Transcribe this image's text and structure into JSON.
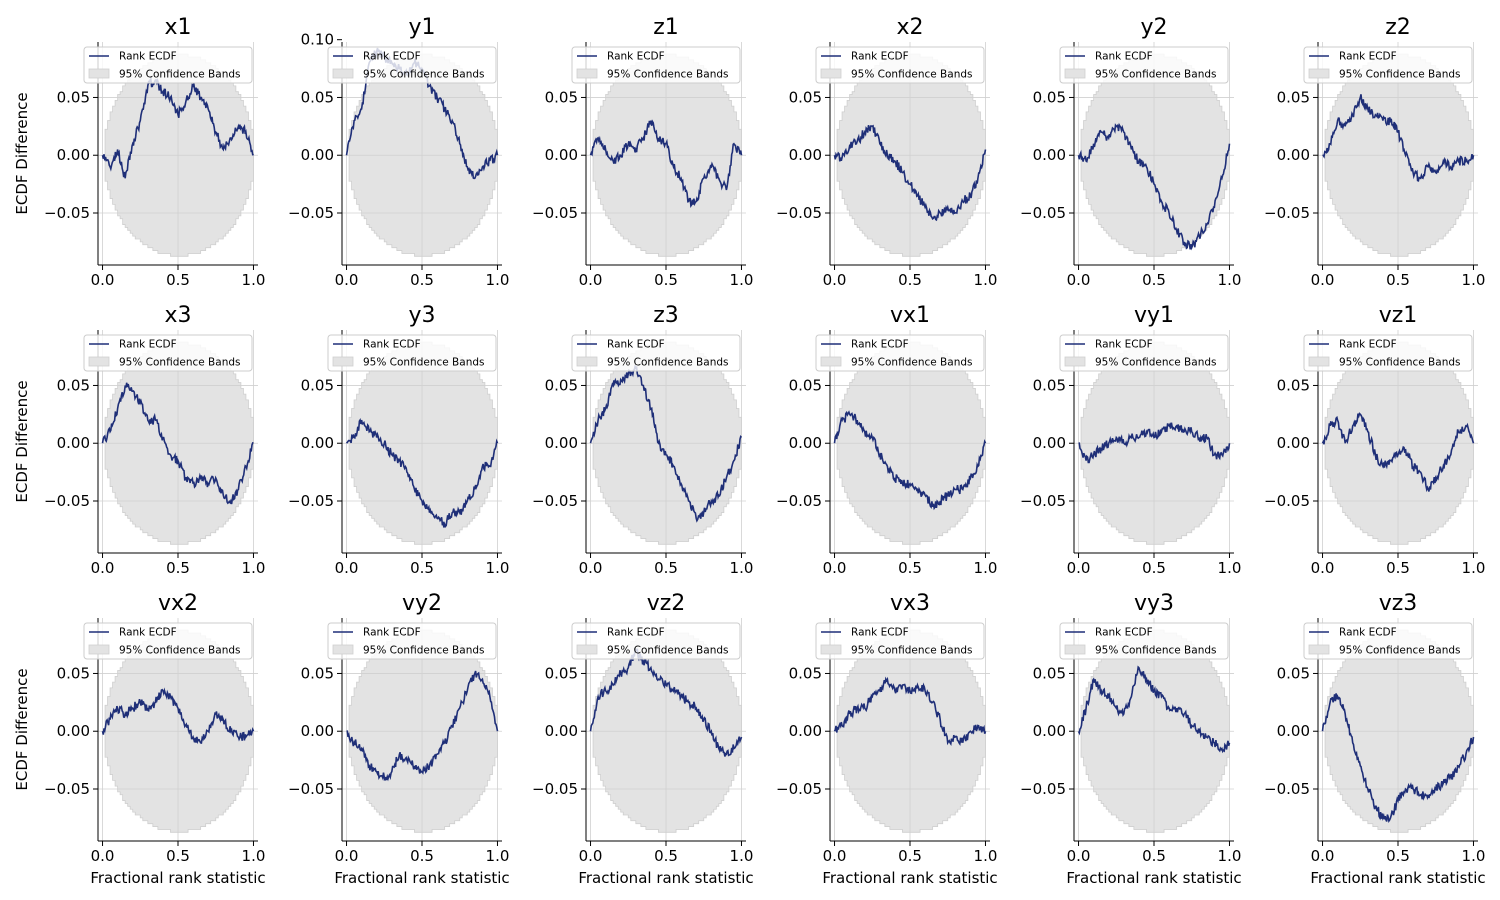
{
  "chart_data": {
    "type": "line",
    "figure": {
      "rows": 3,
      "cols": 6,
      "ylabel": "ECDF Difference",
      "xlabel": "Fractional rank statistic",
      "xlim": [
        -0.03,
        1.03
      ],
      "ylim": [
        -0.095,
        0.098
      ],
      "xticks": [
        0.0,
        0.5,
        1.0
      ],
      "yticks": [
        -0.05,
        0.0,
        0.05
      ],
      "grid": true,
      "legend_placement": "top",
      "legend": {
        "line_label": "Rank ECDF",
        "band_label": "95% Confidence Bands"
      },
      "band_half_width_at_center": 0.087,
      "colors": {
        "line": "#1f2f78",
        "band": "#e3e3e3",
        "band_edge": "#cfcfcf",
        "grid": "#d0d0d0",
        "axis": "#000000"
      }
    },
    "panels": [
      {
        "title": "x1",
        "x": [
          0,
          0.05,
          0.1,
          0.15,
          0.2,
          0.25,
          0.3,
          0.35,
          0.4,
          0.45,
          0.5,
          0.55,
          0.6,
          0.65,
          0.7,
          0.75,
          0.8,
          0.85,
          0.9,
          0.95,
          1.0
        ],
        "y": [
          0.0,
          -0.01,
          0.005,
          -0.02,
          0.01,
          0.03,
          0.06,
          0.065,
          0.055,
          0.05,
          0.035,
          0.045,
          0.06,
          0.05,
          0.04,
          0.02,
          0.005,
          0.015,
          0.025,
          0.02,
          0.0
        ]
      },
      {
        "title": "y1",
        "x": [
          0,
          0.05,
          0.1,
          0.15,
          0.2,
          0.25,
          0.3,
          0.35,
          0.4,
          0.45,
          0.5,
          0.55,
          0.6,
          0.65,
          0.7,
          0.75,
          0.8,
          0.85,
          0.9,
          0.95,
          1.0
        ],
        "y": [
          0.0,
          0.03,
          0.04,
          0.08,
          0.09,
          0.085,
          0.08,
          0.075,
          0.07,
          0.08,
          0.075,
          0.06,
          0.05,
          0.04,
          0.03,
          0.01,
          -0.01,
          -0.02,
          -0.01,
          -0.005,
          0.0
        ]
      },
      {
        "title": "z1",
        "x": [
          0,
          0.05,
          0.1,
          0.15,
          0.2,
          0.25,
          0.3,
          0.35,
          0.4,
          0.45,
          0.5,
          0.55,
          0.6,
          0.65,
          0.7,
          0.75,
          0.8,
          0.85,
          0.9,
          0.95,
          1.0
        ],
        "y": [
          0.0,
          0.015,
          0.005,
          -0.005,
          0.0,
          0.01,
          0.005,
          0.015,
          0.03,
          0.015,
          0.01,
          -0.01,
          -0.02,
          -0.04,
          -0.04,
          -0.02,
          -0.01,
          -0.02,
          -0.03,
          0.01,
          0.0
        ]
      },
      {
        "title": "x2",
        "x": [
          0,
          0.05,
          0.1,
          0.15,
          0.2,
          0.25,
          0.3,
          0.35,
          0.4,
          0.45,
          0.5,
          0.55,
          0.6,
          0.65,
          0.7,
          0.75,
          0.8,
          0.85,
          0.9,
          0.95,
          1.0
        ],
        "y": [
          0.0,
          -0.002,
          0.008,
          0.012,
          0.02,
          0.025,
          0.01,
          0.0,
          -0.005,
          -0.015,
          -0.025,
          -0.035,
          -0.045,
          -0.055,
          -0.05,
          -0.045,
          -0.05,
          -0.04,
          -0.035,
          -0.02,
          0.005
        ]
      },
      {
        "title": "y2",
        "x": [
          0,
          0.05,
          0.1,
          0.15,
          0.2,
          0.25,
          0.3,
          0.35,
          0.4,
          0.45,
          0.5,
          0.55,
          0.6,
          0.65,
          0.7,
          0.75,
          0.8,
          0.85,
          0.9,
          0.95,
          1.0
        ],
        "y": [
          0.0,
          -0.005,
          0.01,
          0.02,
          0.015,
          0.025,
          0.02,
          0.005,
          -0.005,
          -0.01,
          -0.025,
          -0.04,
          -0.05,
          -0.065,
          -0.075,
          -0.08,
          -0.07,
          -0.06,
          -0.045,
          -0.02,
          0.01
        ]
      },
      {
        "title": "z2",
        "x": [
          0,
          0.05,
          0.1,
          0.15,
          0.2,
          0.25,
          0.3,
          0.35,
          0.4,
          0.45,
          0.5,
          0.55,
          0.6,
          0.65,
          0.7,
          0.75,
          0.8,
          0.85,
          0.9,
          0.95,
          1.0
        ],
        "y": [
          0.0,
          0.01,
          0.03,
          0.025,
          0.035,
          0.05,
          0.04,
          0.035,
          0.03,
          0.03,
          0.02,
          0.0,
          -0.015,
          -0.02,
          -0.01,
          -0.015,
          -0.005,
          -0.01,
          -0.005,
          -0.005,
          0.0
        ]
      },
      {
        "title": "x3",
        "x": [
          0,
          0.05,
          0.1,
          0.15,
          0.2,
          0.25,
          0.3,
          0.35,
          0.4,
          0.45,
          0.5,
          0.55,
          0.6,
          0.65,
          0.7,
          0.75,
          0.8,
          0.85,
          0.9,
          0.95,
          1.0
        ],
        "y": [
          0.0,
          0.01,
          0.03,
          0.05,
          0.045,
          0.035,
          0.02,
          0.02,
          0.005,
          -0.01,
          -0.015,
          -0.03,
          -0.035,
          -0.03,
          -0.035,
          -0.03,
          -0.045,
          -0.05,
          -0.04,
          -0.02,
          0.0
        ]
      },
      {
        "title": "y3",
        "x": [
          0,
          0.05,
          0.1,
          0.15,
          0.2,
          0.25,
          0.3,
          0.35,
          0.4,
          0.45,
          0.5,
          0.55,
          0.6,
          0.65,
          0.7,
          0.75,
          0.8,
          0.85,
          0.9,
          0.95,
          1.0
        ],
        "y": [
          0.0,
          0.005,
          0.02,
          0.01,
          0.005,
          0.0,
          -0.01,
          -0.015,
          -0.025,
          -0.04,
          -0.05,
          -0.06,
          -0.065,
          -0.07,
          -0.06,
          -0.06,
          -0.05,
          -0.04,
          -0.02,
          -0.02,
          0.0
        ]
      },
      {
        "title": "z3",
        "x": [
          0,
          0.05,
          0.1,
          0.15,
          0.2,
          0.25,
          0.3,
          0.35,
          0.4,
          0.45,
          0.5,
          0.55,
          0.6,
          0.65,
          0.7,
          0.75,
          0.8,
          0.85,
          0.9,
          0.95,
          1.0
        ],
        "y": [
          0.0,
          0.02,
          0.03,
          0.05,
          0.055,
          0.06,
          0.065,
          0.05,
          0.03,
          0.0,
          -0.01,
          -0.02,
          -0.035,
          -0.05,
          -0.065,
          -0.06,
          -0.05,
          -0.045,
          -0.03,
          -0.015,
          0.005
        ]
      },
      {
        "title": "vx1",
        "x": [
          0,
          0.05,
          0.1,
          0.15,
          0.2,
          0.25,
          0.3,
          0.35,
          0.4,
          0.45,
          0.5,
          0.55,
          0.6,
          0.65,
          0.7,
          0.75,
          0.8,
          0.85,
          0.9,
          0.95,
          1.0
        ],
        "y": [
          0.0,
          0.02,
          0.025,
          0.02,
          0.01,
          0.005,
          -0.01,
          -0.02,
          -0.03,
          -0.035,
          -0.035,
          -0.04,
          -0.045,
          -0.055,
          -0.05,
          -0.045,
          -0.04,
          -0.04,
          -0.03,
          -0.02,
          0.0
        ]
      },
      {
        "title": "vy1",
        "x": [
          0,
          0.05,
          0.1,
          0.15,
          0.2,
          0.25,
          0.3,
          0.35,
          0.4,
          0.45,
          0.5,
          0.55,
          0.6,
          0.65,
          0.7,
          0.75,
          0.8,
          0.85,
          0.9,
          0.95,
          1.0
        ],
        "y": [
          0.0,
          -0.015,
          -0.01,
          -0.005,
          0.0,
          0.005,
          0.0,
          0.005,
          0.005,
          0.01,
          0.005,
          0.01,
          0.015,
          0.015,
          0.01,
          0.01,
          0.005,
          0.005,
          -0.01,
          -0.01,
          0.0
        ]
      },
      {
        "title": "vz1",
        "x": [
          0,
          0.05,
          0.1,
          0.15,
          0.2,
          0.25,
          0.3,
          0.35,
          0.4,
          0.45,
          0.5,
          0.55,
          0.6,
          0.65,
          0.7,
          0.75,
          0.8,
          0.85,
          0.9,
          0.95,
          1.0
        ],
        "y": [
          0.0,
          0.015,
          0.02,
          0.0,
          0.015,
          0.025,
          0.01,
          -0.01,
          -0.02,
          -0.015,
          -0.01,
          -0.005,
          -0.02,
          -0.025,
          -0.04,
          -0.03,
          -0.02,
          -0.01,
          0.01,
          0.015,
          0.0
        ]
      },
      {
        "title": "vx2",
        "x": [
          0,
          0.05,
          0.1,
          0.15,
          0.2,
          0.25,
          0.3,
          0.35,
          0.4,
          0.45,
          0.5,
          0.55,
          0.6,
          0.65,
          0.7,
          0.75,
          0.8,
          0.85,
          0.9,
          0.95,
          1.0
        ],
        "y": [
          0.0,
          0.01,
          0.02,
          0.015,
          0.02,
          0.025,
          0.02,
          0.025,
          0.035,
          0.03,
          0.02,
          0.005,
          -0.005,
          -0.01,
          0.0,
          0.015,
          0.01,
          0.0,
          -0.005,
          -0.005,
          0.0
        ]
      },
      {
        "title": "vy2",
        "x": [
          0,
          0.05,
          0.1,
          0.15,
          0.2,
          0.25,
          0.3,
          0.35,
          0.4,
          0.45,
          0.5,
          0.55,
          0.6,
          0.65,
          0.7,
          0.75,
          0.8,
          0.85,
          0.9,
          0.95,
          1.0
        ],
        "y": [
          0.0,
          -0.01,
          -0.015,
          -0.03,
          -0.035,
          -0.04,
          -0.035,
          -0.02,
          -0.025,
          -0.03,
          -0.035,
          -0.03,
          -0.02,
          -0.01,
          0.005,
          0.02,
          0.035,
          0.05,
          0.045,
          0.03,
          0.0
        ]
      },
      {
        "title": "vz2",
        "x": [
          0,
          0.05,
          0.1,
          0.15,
          0.2,
          0.25,
          0.3,
          0.35,
          0.4,
          0.45,
          0.5,
          0.55,
          0.6,
          0.65,
          0.7,
          0.75,
          0.8,
          0.85,
          0.9,
          0.95,
          1.0
        ],
        "y": [
          0.0,
          0.03,
          0.035,
          0.04,
          0.05,
          0.055,
          0.07,
          0.06,
          0.055,
          0.045,
          0.04,
          0.035,
          0.03,
          0.025,
          0.02,
          0.01,
          0.0,
          -0.015,
          -0.02,
          -0.015,
          -0.005
        ]
      },
      {
        "title": "vx3",
        "x": [
          0,
          0.05,
          0.1,
          0.15,
          0.2,
          0.25,
          0.3,
          0.35,
          0.4,
          0.45,
          0.5,
          0.55,
          0.6,
          0.65,
          0.7,
          0.75,
          0.8,
          0.85,
          0.9,
          0.95,
          1.0
        ],
        "y": [
          0.0,
          0.005,
          0.015,
          0.02,
          0.02,
          0.03,
          0.035,
          0.045,
          0.035,
          0.04,
          0.035,
          0.04,
          0.035,
          0.025,
          0.01,
          -0.01,
          -0.005,
          -0.01,
          0.0,
          0.005,
          0.0
        ]
      },
      {
        "title": "vy3",
        "x": [
          0,
          0.05,
          0.1,
          0.15,
          0.2,
          0.25,
          0.3,
          0.35,
          0.4,
          0.45,
          0.5,
          0.55,
          0.6,
          0.65,
          0.7,
          0.75,
          0.8,
          0.85,
          0.9,
          0.95,
          1.0
        ],
        "y": [
          0.0,
          0.02,
          0.045,
          0.035,
          0.03,
          0.02,
          0.015,
          0.03,
          0.055,
          0.045,
          0.035,
          0.03,
          0.02,
          0.02,
          0.015,
          0.005,
          0.0,
          -0.005,
          -0.01,
          -0.015,
          -0.01
        ]
      },
      {
        "title": "vz3",
        "x": [
          0,
          0.05,
          0.1,
          0.15,
          0.2,
          0.25,
          0.3,
          0.35,
          0.4,
          0.45,
          0.5,
          0.55,
          0.6,
          0.65,
          0.7,
          0.75,
          0.8,
          0.85,
          0.9,
          0.95,
          1.0
        ],
        "y": [
          0.0,
          0.025,
          0.03,
          0.015,
          -0.01,
          -0.03,
          -0.05,
          -0.065,
          -0.075,
          -0.075,
          -0.06,
          -0.05,
          -0.05,
          -0.055,
          -0.055,
          -0.05,
          -0.045,
          -0.04,
          -0.03,
          -0.02,
          -0.005
        ]
      }
    ]
  }
}
